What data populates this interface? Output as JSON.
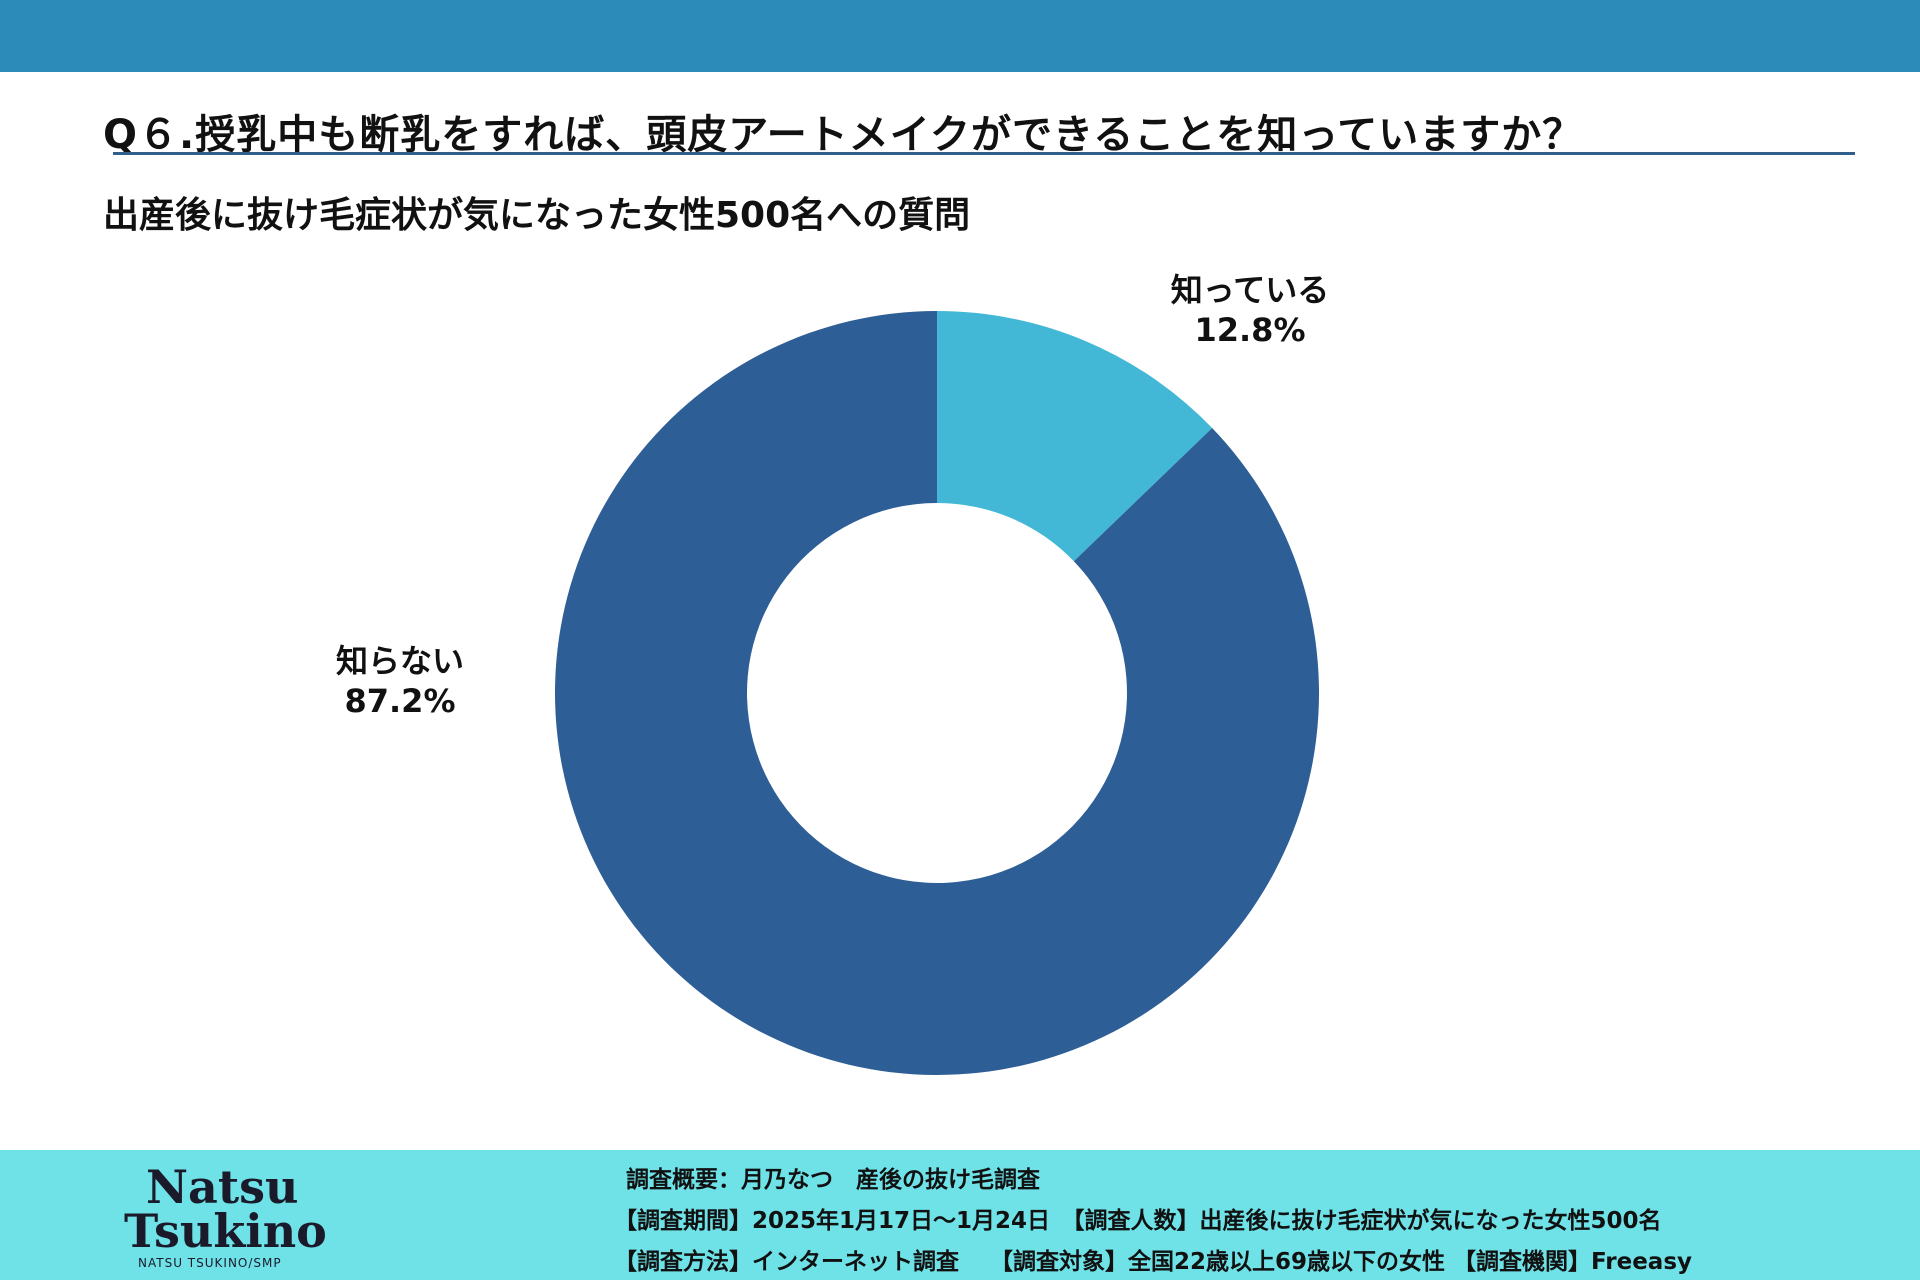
{
  "header": {
    "question": "Q６.授乳中も断乳をすれば、頭皮アートメイクができることを知っていますか？",
    "subtitle": "出産後に抜け毛症状が気になった女性500名への質問"
  },
  "colors": {
    "top_bar": "#2d8bba",
    "footer": "#6fe2e8",
    "slice_know": "#42b8d6",
    "slice_dont_know": "#2e5e96"
  },
  "chart_data": {
    "type": "pie",
    "donut": true,
    "slices": [
      {
        "label": "知っている",
        "value": 12.8,
        "display": "12.8%",
        "color": "#42b8d6"
      },
      {
        "label": "知らない",
        "value": 87.2,
        "display": "87.2%",
        "color": "#2e5e96"
      }
    ],
    "legend": "none"
  },
  "footer": {
    "logo": {
      "line1": "Natsu",
      "line2": "Tsukino",
      "sub": "NATSU TSUKINO/SMP"
    },
    "lines": [
      "調査概要：月乃なつ　産後の抜け毛調査",
      "【調査期間】2025年1月17日～1月24日　【調査人数】出産後に抜け毛症状が気になった女性500名",
      "【調査方法】インターネット調査　 【調査対象】全国22歳以上69歳以下の女性 【調査機関】Freeasy"
    ]
  }
}
